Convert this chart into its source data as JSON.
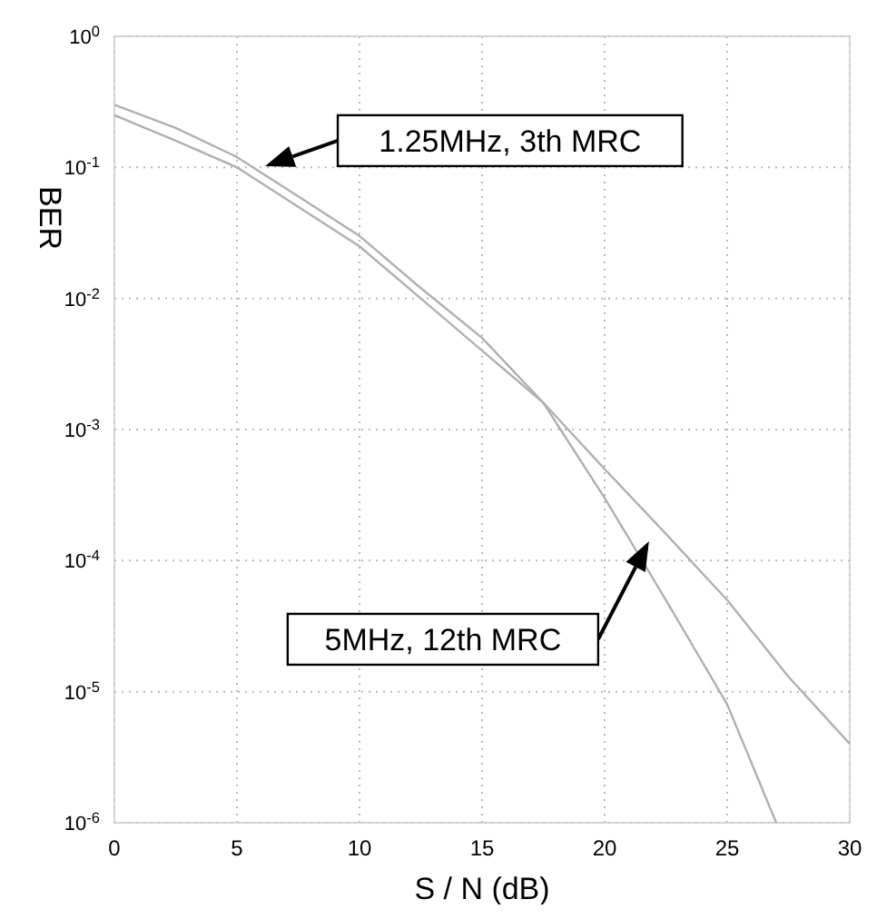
{
  "chart_data": {
    "type": "line",
    "xlabel": "S / N (dB)",
    "ylabel": "BER",
    "log": "y",
    "grid": true,
    "marker": "none",
    "line_style": "solid",
    "xlim": [
      0,
      30
    ],
    "xticks": [
      0,
      5,
      10,
      15,
      20,
      25,
      30
    ],
    "ylim": [
      1e-06,
      1
    ],
    "yticks": [
      {
        "value": 1,
        "label": "10$^{0}$"
      },
      {
        "value": 0.1,
        "label": "10$^{-1}$"
      },
      {
        "value": 0.01,
        "label": "10$^{-2}$"
      },
      {
        "value": 0.001,
        "label": "10$^{-3}$"
      },
      {
        "value": 0.0001,
        "label": "10$^{-4}$"
      },
      {
        "value": 1e-05,
        "label": "10$^{-5}$"
      },
      {
        "value": 1e-06,
        "label": "10$^{-6}$"
      }
    ],
    "series": [
      {
        "color": "#b0b0b0",
        "x": [
          0,
          2.5,
          5,
          7.5,
          10,
          12.5,
          15,
          17.5,
          20,
          22.5,
          25,
          27.5,
          30
        ],
        "values": [
          0.25,
          0.16,
          0.1,
          0.05,
          0.025,
          0.01,
          0.004,
          0.0016,
          0.0005,
          0.00016,
          5e-05,
          1.3e-05,
          4e-06
        ]
      },
      {
        "color": "#b0b0b0",
        "x": [
          0,
          2.5,
          5,
          7.5,
          10,
          12.5,
          15,
          17.5,
          20,
          22.5,
          25,
          27
        ],
        "values": [
          0.3,
          0.2,
          0.12,
          0.06,
          0.03,
          0.012,
          0.005,
          0.0016,
          0.0003,
          5e-05,
          8e-06,
          1e-06
        ]
      }
    ],
    "annotations": [
      "1.25MHz, 3th  MRC",
      "5MHz, 12th  MRC"
    ]
  }
}
